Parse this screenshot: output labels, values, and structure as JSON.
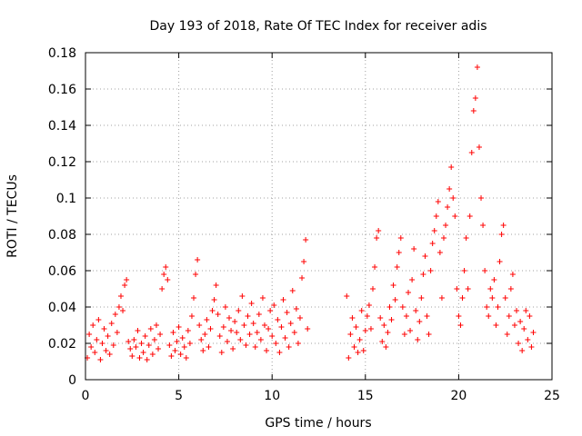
{
  "chart_data": {
    "type": "scatter",
    "title": "Day 193 of 2018, Rate Of TEC Index for receiver adis",
    "xlabel": "GPS time / hours",
    "ylabel": "ROTI / TECUs",
    "xlim": [
      0,
      25
    ],
    "ylim": [
      0,
      0.18
    ],
    "xticks": [
      0,
      5,
      10,
      15,
      20,
      25
    ],
    "yticks": [
      0,
      0.02,
      0.04,
      0.06,
      0.08,
      0.1,
      0.12,
      0.14,
      0.16,
      0.18
    ],
    "xtick_labels": [
      "0",
      "5",
      "10",
      "15",
      "20",
      "25"
    ],
    "ytick_labels": [
      "0",
      "0.02",
      "0.04",
      "0.06",
      "0.08",
      "0.1",
      "0.12",
      "0.14",
      "0.16",
      "0.18"
    ],
    "grid": true,
    "marker": "plus",
    "color": "#ff0000",
    "series": [
      {
        "name": "ROTI",
        "points": [
          [
            0.1,
            0.012
          ],
          [
            0.2,
            0.025
          ],
          [
            0.3,
            0.018
          ],
          [
            0.4,
            0.03
          ],
          [
            0.5,
            0.015
          ],
          [
            0.6,
            0.022
          ],
          [
            0.7,
            0.033
          ],
          [
            0.8,
            0.011
          ],
          [
            0.9,
            0.02
          ],
          [
            1.0,
            0.028
          ],
          [
            1.1,
            0.016
          ],
          [
            1.2,
            0.024
          ],
          [
            1.3,
            0.014
          ],
          [
            1.4,
            0.031
          ],
          [
            1.5,
            0.019
          ],
          [
            1.6,
            0.036
          ],
          [
            1.7,
            0.026
          ],
          [
            1.8,
            0.04
          ],
          [
            1.9,
            0.046
          ],
          [
            2.0,
            0.038
          ],
          [
            2.1,
            0.052
          ],
          [
            2.2,
            0.055
          ],
          [
            2.3,
            0.021
          ],
          [
            2.4,
            0.017
          ],
          [
            2.5,
            0.013
          ],
          [
            2.6,
            0.022
          ],
          [
            2.7,
            0.018
          ],
          [
            2.8,
            0.027
          ],
          [
            2.9,
            0.012
          ],
          [
            3.0,
            0.02
          ],
          [
            3.1,
            0.015
          ],
          [
            3.2,
            0.024
          ],
          [
            3.3,
            0.011
          ],
          [
            3.4,
            0.019
          ],
          [
            3.5,
            0.028
          ],
          [
            3.6,
            0.014
          ],
          [
            3.7,
            0.022
          ],
          [
            3.8,
            0.03
          ],
          [
            3.9,
            0.017
          ],
          [
            4.0,
            0.025
          ],
          [
            4.1,
            0.05
          ],
          [
            4.2,
            0.058
          ],
          [
            4.3,
            0.062
          ],
          [
            4.4,
            0.055
          ],
          [
            4.5,
            0.019
          ],
          [
            4.6,
            0.013
          ],
          [
            4.7,
            0.026
          ],
          [
            4.8,
            0.016
          ],
          [
            4.9,
            0.021
          ],
          [
            5.0,
            0.029
          ],
          [
            5.1,
            0.014
          ],
          [
            5.2,
            0.023
          ],
          [
            5.3,
            0.018
          ],
          [
            5.4,
            0.012
          ],
          [
            5.5,
            0.027
          ],
          [
            5.6,
            0.02
          ],
          [
            5.7,
            0.035
          ],
          [
            5.8,
            0.045
          ],
          [
            5.9,
            0.058
          ],
          [
            6.0,
            0.066
          ],
          [
            6.1,
            0.03
          ],
          [
            6.2,
            0.022
          ],
          [
            6.3,
            0.016
          ],
          [
            6.4,
            0.025
          ],
          [
            6.5,
            0.033
          ],
          [
            6.6,
            0.018
          ],
          [
            6.7,
            0.028
          ],
          [
            6.8,
            0.038
          ],
          [
            6.9,
            0.044
          ],
          [
            7.0,
            0.052
          ],
          [
            7.1,
            0.036
          ],
          [
            7.2,
            0.024
          ],
          [
            7.3,
            0.015
          ],
          [
            7.4,
            0.029
          ],
          [
            7.5,
            0.04
          ],
          [
            7.6,
            0.021
          ],
          [
            7.7,
            0.034
          ],
          [
            7.8,
            0.027
          ],
          [
            7.9,
            0.017
          ],
          [
            8.0,
            0.032
          ],
          [
            8.1,
            0.026
          ],
          [
            8.2,
            0.038
          ],
          [
            8.3,
            0.022
          ],
          [
            8.4,
            0.046
          ],
          [
            8.5,
            0.03
          ],
          [
            8.6,
            0.019
          ],
          [
            8.7,
            0.035
          ],
          [
            8.8,
            0.025
          ],
          [
            8.9,
            0.042
          ],
          [
            9.0,
            0.031
          ],
          [
            9.1,
            0.018
          ],
          [
            9.2,
            0.026
          ],
          [
            9.3,
            0.036
          ],
          [
            9.4,
            0.022
          ],
          [
            9.5,
            0.045
          ],
          [
            9.6,
            0.03
          ],
          [
            9.7,
            0.016
          ],
          [
            9.8,
            0.028
          ],
          [
            9.9,
            0.038
          ],
          [
            10.0,
            0.024
          ],
          [
            10.1,
            0.041
          ],
          [
            10.2,
            0.02
          ],
          [
            10.3,
            0.033
          ],
          [
            10.4,
            0.015
          ],
          [
            10.5,
            0.029
          ],
          [
            10.6,
            0.044
          ],
          [
            10.7,
            0.023
          ],
          [
            10.8,
            0.037
          ],
          [
            10.9,
            0.018
          ],
          [
            11.0,
            0.031
          ],
          [
            11.1,
            0.049
          ],
          [
            11.2,
            0.026
          ],
          [
            11.3,
            0.039
          ],
          [
            11.4,
            0.02
          ],
          [
            11.5,
            0.034
          ],
          [
            11.6,
            0.056
          ],
          [
            11.7,
            0.065
          ],
          [
            11.8,
            0.077
          ],
          [
            11.9,
            0.028
          ],
          [
            14.0,
            0.046
          ],
          [
            14.1,
            0.012
          ],
          [
            14.2,
            0.025
          ],
          [
            14.3,
            0.034
          ],
          [
            14.4,
            0.018
          ],
          [
            14.5,
            0.029
          ],
          [
            14.6,
            0.015
          ],
          [
            14.7,
            0.022
          ],
          [
            14.8,
            0.038
          ],
          [
            14.9,
            0.016
          ],
          [
            15.0,
            0.027
          ],
          [
            15.1,
            0.035
          ],
          [
            15.2,
            0.041
          ],
          [
            15.3,
            0.028
          ],
          [
            15.4,
            0.05
          ],
          [
            15.5,
            0.062
          ],
          [
            15.6,
            0.078
          ],
          [
            15.7,
            0.082
          ],
          [
            15.8,
            0.034
          ],
          [
            15.9,
            0.021
          ],
          [
            16.0,
            0.03
          ],
          [
            16.1,
            0.018
          ],
          [
            16.2,
            0.026
          ],
          [
            16.3,
            0.04
          ],
          [
            16.4,
            0.033
          ],
          [
            16.5,
            0.052
          ],
          [
            16.6,
            0.044
          ],
          [
            16.7,
            0.062
          ],
          [
            16.8,
            0.07
          ],
          [
            16.9,
            0.078
          ],
          [
            17.0,
            0.04
          ],
          [
            17.1,
            0.025
          ],
          [
            17.2,
            0.035
          ],
          [
            17.3,
            0.048
          ],
          [
            17.4,
            0.027
          ],
          [
            17.5,
            0.055
          ],
          [
            17.6,
            0.072
          ],
          [
            17.7,
            0.038
          ],
          [
            17.8,
            0.022
          ],
          [
            17.9,
            0.032
          ],
          [
            18.0,
            0.045
          ],
          [
            18.1,
            0.058
          ],
          [
            18.2,
            0.068
          ],
          [
            18.3,
            0.035
          ],
          [
            18.4,
            0.025
          ],
          [
            18.5,
            0.06
          ],
          [
            18.6,
            0.075
          ],
          [
            18.7,
            0.082
          ],
          [
            18.8,
            0.09
          ],
          [
            18.9,
            0.098
          ],
          [
            19.0,
            0.07
          ],
          [
            19.1,
            0.045
          ],
          [
            19.2,
            0.078
          ],
          [
            19.3,
            0.085
          ],
          [
            19.4,
            0.095
          ],
          [
            19.5,
            0.105
          ],
          [
            19.6,
            0.117
          ],
          [
            19.7,
            0.1
          ],
          [
            19.8,
            0.09
          ],
          [
            19.9,
            0.05
          ],
          [
            20.0,
            0.035
          ],
          [
            20.1,
            0.03
          ],
          [
            20.2,
            0.045
          ],
          [
            20.3,
            0.06
          ],
          [
            20.4,
            0.078
          ],
          [
            20.5,
            0.05
          ],
          [
            20.6,
            0.09
          ],
          [
            20.7,
            0.125
          ],
          [
            20.8,
            0.148
          ],
          [
            20.9,
            0.155
          ],
          [
            21.0,
            0.172
          ],
          [
            21.1,
            0.128
          ],
          [
            21.2,
            0.1
          ],
          [
            21.3,
            0.085
          ],
          [
            21.4,
            0.06
          ],
          [
            21.5,
            0.04
          ],
          [
            21.6,
            0.035
          ],
          [
            21.7,
            0.05
          ],
          [
            21.8,
            0.045
          ],
          [
            21.9,
            0.055
          ],
          [
            22.0,
            0.03
          ],
          [
            22.1,
            0.04
          ],
          [
            22.2,
            0.065
          ],
          [
            22.3,
            0.08
          ],
          [
            22.4,
            0.085
          ],
          [
            22.5,
            0.045
          ],
          [
            22.6,
            0.025
          ],
          [
            22.7,
            0.035
          ],
          [
            22.8,
            0.05
          ],
          [
            22.9,
            0.058
          ],
          [
            23.0,
            0.03
          ],
          [
            23.1,
            0.038
          ],
          [
            23.2,
            0.02
          ],
          [
            23.3,
            0.032
          ],
          [
            23.4,
            0.016
          ],
          [
            23.5,
            0.028
          ],
          [
            23.6,
            0.038
          ],
          [
            23.7,
            0.022
          ],
          [
            23.8,
            0.035
          ],
          [
            23.9,
            0.018
          ],
          [
            24.0,
            0.026
          ]
        ]
      }
    ]
  }
}
